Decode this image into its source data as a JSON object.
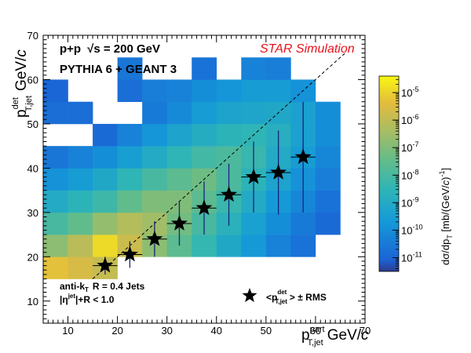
{
  "chart_data": {
    "type": "heatmap",
    "annotations": {
      "system_prefix": "p+p",
      "energy_prefix": "√",
      "energy_label": "s = 200 GeV",
      "generator": "PYTHIA 6 + GEANT 3",
      "experiment_tag": "STAR Simulation",
      "algo_prefix": "anti-k",
      "algo_sub": "T",
      "algo_rest": "R = 0.4 Jets",
      "eta_cut_main": "|η",
      "eta_cut_sup": "jet",
      "eta_cut_rest": "|+R < 1.0"
    },
    "x_axis": {
      "label_main": "p",
      "label_sup": "part",
      "label_sub": "T,jet",
      "label_unit": "GeV/",
      "label_unit_italic": "c",
      "range": [
        5,
        70
      ],
      "ticks": [
        "10",
        "20",
        "30",
        "40",
        "50",
        "60",
        "70"
      ]
    },
    "y_axis": {
      "label_main": "p",
      "label_sup": "det",
      "label_sub": "T,jet",
      "label_unit": "GeV/",
      "label_unit_italic": "c",
      "range": [
        5,
        70
      ],
      "ticks": [
        "10",
        "20",
        "30",
        "40",
        "50",
        "60",
        "70"
      ]
    },
    "z_axis": {
      "label": "dσ/dp",
      "label_sub": "T",
      "label_unit": " [mb/(GeV/",
      "label_unit_italic": "c",
      "label_unit_end": ")",
      "label_unit_sup": "-1",
      "label_unit_close": "]",
      "scale": "log",
      "range_log10": [
        -11.5,
        -4.4
      ],
      "tick_exponents": [
        "-5",
        "-6",
        "-7",
        "-8",
        "-9",
        "-10",
        "-11"
      ]
    },
    "bin_width": 5,
    "cells": [
      [
        5,
        15,
        -5.3
      ],
      [
        10,
        15,
        -5.6
      ],
      [
        15,
        15,
        -5.9
      ],
      [
        5,
        20,
        -6.8
      ],
      [
        10,
        20,
        -6.1
      ],
      [
        15,
        20,
        -4.9
      ],
      [
        20,
        20,
        -5.8
      ],
      [
        25,
        20,
        -6.8
      ],
      [
        30,
        20,
        -7.6
      ],
      [
        35,
        20,
        -8.4
      ],
      [
        40,
        20,
        -9.1
      ],
      [
        45,
        20,
        -9.7
      ],
      [
        50,
        20,
        -10.3
      ],
      [
        55,
        20,
        -10.7
      ],
      [
        5,
        25,
        -8.0
      ],
      [
        10,
        25,
        -7.5
      ],
      [
        15,
        25,
        -6.7
      ],
      [
        20,
        25,
        -6.2
      ],
      [
        25,
        25,
        -6.5
      ],
      [
        30,
        25,
        -7.2
      ],
      [
        35,
        25,
        -8.0
      ],
      [
        40,
        25,
        -8.7
      ],
      [
        45,
        25,
        -9.4
      ],
      [
        50,
        25,
        -10.0
      ],
      [
        55,
        25,
        -10.5
      ],
      [
        60,
        25,
        -10.9
      ],
      [
        5,
        30,
        -9.0
      ],
      [
        10,
        30,
        -8.6
      ],
      [
        15,
        30,
        -8.2
      ],
      [
        20,
        30,
        -7.5
      ],
      [
        25,
        30,
        -7.0
      ],
      [
        30,
        30,
        -7.0
      ],
      [
        35,
        30,
        -7.6
      ],
      [
        40,
        30,
        -8.3
      ],
      [
        45,
        30,
        -9.0
      ],
      [
        50,
        30,
        -9.7
      ],
      [
        55,
        30,
        -10.2
      ],
      [
        60,
        30,
        -10.7
      ],
      [
        5,
        35,
        -9.9
      ],
      [
        10,
        35,
        -9.6
      ],
      [
        15,
        35,
        -9.1
      ],
      [
        20,
        35,
        -8.5
      ],
      [
        25,
        35,
        -8.0
      ],
      [
        30,
        35,
        -7.6
      ],
      [
        35,
        35,
        -7.3
      ],
      [
        40,
        35,
        -7.9
      ],
      [
        45,
        35,
        -8.6
      ],
      [
        50,
        35,
        -9.3
      ],
      [
        55,
        35,
        -9.9
      ],
      [
        60,
        35,
        -10.4
      ],
      [
        5,
        40,
        -10.6
      ],
      [
        10,
        40,
        -10.3
      ],
      [
        15,
        40,
        -10.0
      ],
      [
        20,
        40,
        -9.5
      ],
      [
        25,
        40,
        -9.0
      ],
      [
        30,
        40,
        -8.5
      ],
      [
        35,
        40,
        -8.1
      ],
      [
        40,
        40,
        -7.9
      ],
      [
        45,
        40,
        -8.3
      ],
      [
        50,
        40,
        -9.0
      ],
      [
        55,
        40,
        -9.6
      ],
      [
        60,
        40,
        -10.2
      ],
      [
        15,
        45,
        -10.9
      ],
      [
        20,
        45,
        -10.3
      ],
      [
        25,
        45,
        -9.8
      ],
      [
        30,
        45,
        -9.3
      ],
      [
        35,
        45,
        -8.9
      ],
      [
        40,
        45,
        -8.6
      ],
      [
        45,
        45,
        -8.5
      ],
      [
        50,
        45,
        -8.8
      ],
      [
        55,
        45,
        -9.4
      ],
      [
        60,
        45,
        -10.0
      ],
      [
        5,
        50,
        -10.8
      ],
      [
        10,
        50,
        -10.8
      ],
      [
        25,
        50,
        -10.5
      ],
      [
        30,
        50,
        -10.1
      ],
      [
        35,
        50,
        -9.6
      ],
      [
        40,
        50,
        -9.3
      ],
      [
        45,
        50,
        -9.2
      ],
      [
        50,
        50,
        -9.1
      ],
      [
        55,
        50,
        -9.4
      ],
      [
        60,
        50,
        -10.0
      ],
      [
        5,
        55,
        -11.0
      ],
      [
        20,
        55,
        -10.8
      ],
      [
        25,
        55,
        -10.4
      ],
      [
        30,
        55,
        -10.3
      ],
      [
        35,
        55,
        -10.0
      ],
      [
        40,
        55,
        -9.8
      ],
      [
        45,
        55,
        -9.6
      ],
      [
        50,
        55,
        -9.6
      ],
      [
        55,
        55,
        -9.9
      ],
      [
        20,
        60,
        -10.6
      ],
      [
        35,
        60,
        -10.7
      ],
      [
        45,
        60,
        -10.3
      ],
      [
        50,
        60,
        -10.4
      ]
    ],
    "series": [
      {
        "name_main": "<p",
        "name_sup": "det",
        "name_sub": "T,jet",
        "name_rest": "> ± RMS",
        "marker": "star",
        "x": [
          17.5,
          22.5,
          27.5,
          32.5,
          37.5,
          42.5,
          47.5,
          52.5,
          57.5
        ],
        "y": [
          18.0,
          20.5,
          24.0,
          27.5,
          31.0,
          34.0,
          38.0,
          39.0,
          42.5
        ],
        "rms": [
          2.0,
          3.0,
          4.0,
          5.0,
          6.0,
          7.0,
          8.0,
          9.5,
          12.5
        ]
      }
    ],
    "diagonal": {
      "style": "dashed",
      "from": [
        15,
        15
      ],
      "to": [
        66,
        66
      ]
    }
  }
}
